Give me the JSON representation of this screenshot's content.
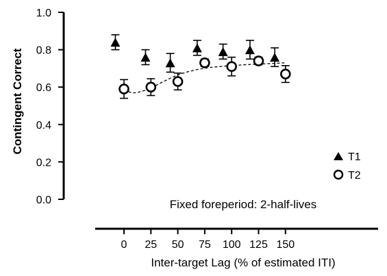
{
  "chart_data": {
    "type": "scatter",
    "title": "",
    "xlabel": "Inter-target Lag (% of estimated ITI)",
    "ylabel": "Contingent Correct",
    "annotation": "Fixed foreperiod: 2-half-lives",
    "xlim": [
      -18,
      163
    ],
    "ylim": [
      0,
      1.0
    ],
    "x_ticks": [
      0,
      25,
      50,
      75,
      100,
      125,
      150
    ],
    "y_ticks": [
      0.0,
      0.2,
      0.4,
      0.6,
      0.8,
      1.0
    ],
    "x_tick_labels": [
      "0",
      "25",
      "50",
      "75",
      "100",
      "125",
      "150"
    ],
    "y_tick_labels": [
      "0.0",
      "0.2",
      "0.4",
      "0.6",
      "0.8",
      "1.0"
    ],
    "legend_position": "lower-right",
    "series": [
      {
        "name": "T1",
        "marker": "filled-triangle",
        "x": [
          -8,
          20,
          43,
          68,
          92,
          117,
          140
        ],
        "y": [
          0.84,
          0.76,
          0.73,
          0.81,
          0.79,
          0.8,
          0.76
        ],
        "err": [
          0.04,
          0.04,
          0.05,
          0.04,
          0.04,
          0.05,
          0.05
        ]
      },
      {
        "name": "T2",
        "marker": "open-circle",
        "x": [
          0,
          25,
          50,
          75,
          100,
          125,
          150
        ],
        "y": [
          0.59,
          0.6,
          0.63,
          0.73,
          0.71,
          0.74,
          0.67
        ],
        "err": [
          0.05,
          0.045,
          0.045,
          0.02,
          0.05,
          0.02,
          0.045
        ]
      }
    ],
    "fit_curve": {
      "series": "T2",
      "style": "dashed",
      "x": [
        0,
        8,
        15,
        25,
        35,
        50,
        65,
        80,
        100,
        120,
        140,
        150
      ],
      "y": [
        0.585,
        0.57,
        0.575,
        0.595,
        0.625,
        0.665,
        0.69,
        0.705,
        0.715,
        0.722,
        0.727,
        0.73
      ]
    }
  }
}
